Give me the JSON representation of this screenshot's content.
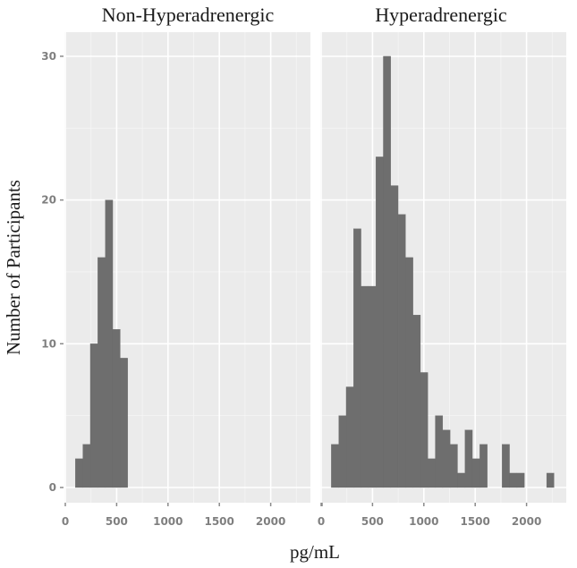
{
  "chart_data": {
    "type": "bar",
    "subtype": "faceted-histogram",
    "xlabel": "pg/mL",
    "ylabel": "Number of Participants",
    "ylim": [
      0,
      32
    ],
    "yticks": [
      0,
      10,
      20,
      30
    ],
    "yticks_minor": [
      5,
      15,
      25
    ],
    "xticks": [
      0,
      500,
      1000,
      1500,
      2000
    ],
    "xticks_minor": [
      250,
      750,
      1250,
      1750,
      2250
    ],
    "xlim": [
      -10,
      2400
    ],
    "grid": true,
    "legend": "none",
    "bar_color": "#6e6e6e",
    "panel_background": "#ebebeb",
    "panels": [
      {
        "title": "Non-Hyperadrenergic",
        "bin_start": 98,
        "bin_width": 72.8,
        "counts": [
          2,
          3,
          10,
          16,
          20,
          11,
          9
        ],
        "bin_centers": [
          134,
          207,
          280,
          353,
          426,
          498,
          571
        ]
      },
      {
        "title": "Hyperadrenergic",
        "bin_start": 99,
        "bin_width": 72.3,
        "counts": [
          3,
          5,
          7,
          18,
          14,
          14,
          23,
          30,
          21,
          19,
          16,
          12,
          8,
          2,
          5,
          4,
          3,
          1,
          4,
          2,
          3,
          0,
          0,
          3,
          1,
          1,
          0,
          0,
          0,
          1
        ],
        "bin_centers": [
          135,
          207,
          280,
          352,
          424,
          497,
          569,
          641,
          713,
          786,
          858,
          930,
          1003,
          1075,
          1147,
          1220,
          1292,
          1364,
          1437,
          1509,
          1581,
          1654,
          1726,
          1798,
          1871,
          1943,
          2015,
          2088,
          2160,
          2232
        ]
      }
    ]
  },
  "labels": {
    "left_strip": "Non-Hyperadrenergic",
    "right_strip": "Hyperadrenergic",
    "y_axis_title": "Number of Participants",
    "x_axis_title": "pg/mL",
    "y_tick_labels": [
      "0",
      "10",
      "20",
      "30"
    ],
    "x_tick_labels": [
      "0",
      "500",
      "1000",
      "1500",
      "2000"
    ]
  }
}
